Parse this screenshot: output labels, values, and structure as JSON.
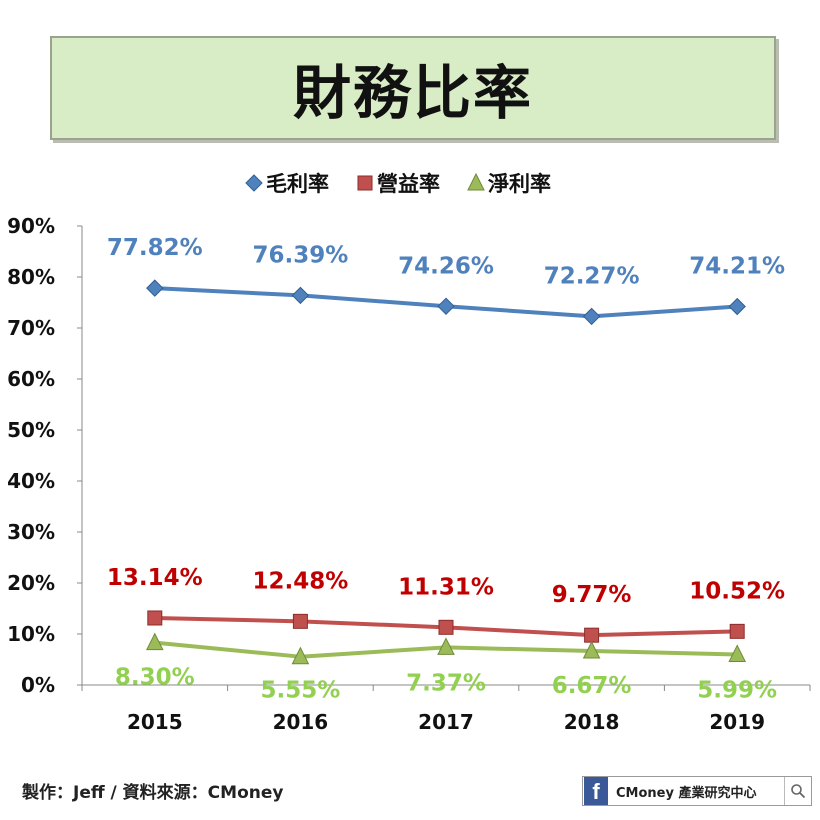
{
  "title": "財務比率",
  "chart_data": {
    "type": "line",
    "categories": [
      "2015",
      "2016",
      "2017",
      "2018",
      "2019"
    ],
    "ylim": [
      0,
      90
    ],
    "yticks": [
      0,
      10,
      20,
      30,
      40,
      50,
      60,
      70,
      80,
      90
    ],
    "ytick_labels": [
      "0%",
      "10%",
      "20%",
      "30%",
      "40%",
      "50%",
      "60%",
      "70%",
      "80%",
      "90%"
    ],
    "legend_position": "top-center",
    "grid": false,
    "series": [
      {
        "name": "毛利率",
        "values": [
          77.82,
          76.39,
          74.26,
          72.27,
          74.21
        ],
        "labels": [
          "77.82%",
          "76.39%",
          "74.26%",
          "72.27%",
          "74.21%"
        ],
        "color": "#4f81bd",
        "label_color": "#4f81bd",
        "marker": "diamond"
      },
      {
        "name": "營益率",
        "values": [
          13.14,
          12.48,
          11.31,
          9.77,
          10.52
        ],
        "labels": [
          "13.14%",
          "12.48%",
          "11.31%",
          "9.77%",
          "10.52%"
        ],
        "color": "#c0504d",
        "label_color": "#c00000",
        "marker": "square"
      },
      {
        "name": "淨利率",
        "values": [
          8.3,
          5.55,
          7.37,
          6.67,
          5.99
        ],
        "labels": [
          "8.30%",
          "5.55%",
          "7.37%",
          "6.67%",
          "5.99%"
        ],
        "color": "#9bbb59",
        "label_color": "#92d050",
        "marker": "triangle"
      }
    ]
  },
  "footer": {
    "credit": "製作：Jeff / 資料來源：CMoney",
    "badge_icon": "facebook-icon",
    "badge_text": "CMoney 產業研究中心",
    "search_icon": "search-icon"
  }
}
